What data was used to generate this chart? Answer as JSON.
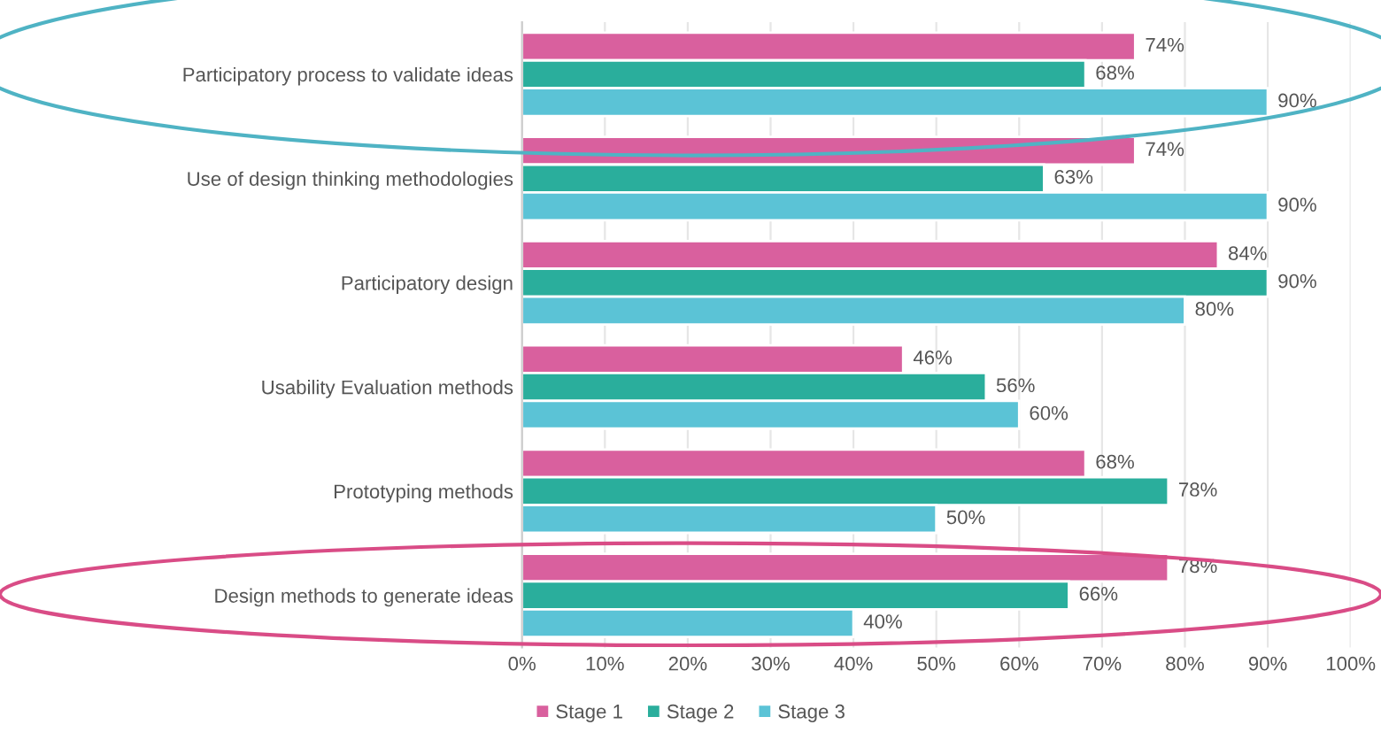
{
  "chart_data": {
    "type": "bar",
    "orientation": "horizontal",
    "categories": [
      "Participatory process to validate ideas",
      "Use of design thinking methodologies",
      "Participatory design",
      "Usability Evaluation methods",
      "Prototyping methods",
      "Design methods to generate ideas"
    ],
    "series": [
      {
        "name": "Stage 1",
        "color": "#d9609e",
        "values": [
          74,
          74,
          84,
          46,
          68,
          78
        ],
        "value_labels": [
          "74%",
          "74%",
          "84%",
          "46%",
          "68%",
          "78%"
        ]
      },
      {
        "name": "Stage 2",
        "color": "#2aae9c",
        "values": [
          68,
          63,
          90,
          56,
          78,
          66
        ],
        "value_labels": [
          "68%",
          "63%",
          "90%",
          "56%",
          "78%",
          "66%"
        ]
      },
      {
        "name": "Stage 3",
        "color": "#5bc3d6",
        "values": [
          90,
          90,
          80,
          60,
          50,
          40
        ],
        "value_labels": [
          "90%",
          "90%",
          "80%",
          "60%",
          "50%",
          "40%"
        ]
      }
    ],
    "xlim": [
      0,
      100
    ],
    "xticks": [
      {
        "value": 0,
        "label": "0%"
      },
      {
        "value": 10,
        "label": "10%"
      },
      {
        "value": 20,
        "label": "20%"
      },
      {
        "value": 30,
        "label": "30%"
      },
      {
        "value": 40,
        "label": "40%"
      },
      {
        "value": 50,
        "label": "50%"
      },
      {
        "value": 60,
        "label": "60%"
      },
      {
        "value": 70,
        "label": "70%"
      },
      {
        "value": 80,
        "label": "80%"
      },
      {
        "value": 90,
        "label": "90%"
      },
      {
        "value": 100,
        "label": "100%"
      }
    ],
    "grid": "x",
    "legend": "bottom"
  }
}
